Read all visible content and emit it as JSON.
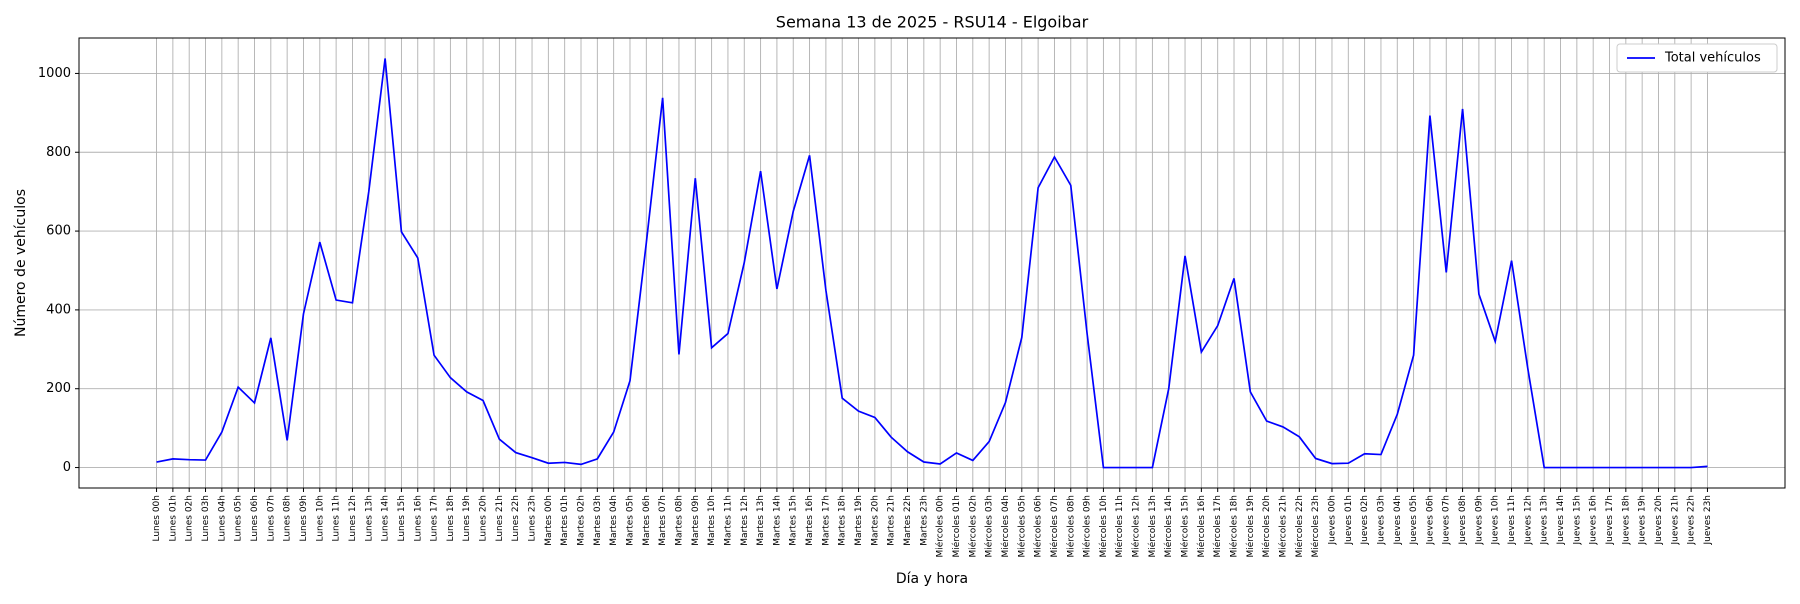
{
  "chart_data": {
    "type": "line",
    "title": "Semana 13 de 2025 - RSU14 - Elgoibar",
    "xlabel": "Día y hora",
    "ylabel": "Número de vehículos",
    "categories": [
      "Lunes 00h",
      "Lunes 01h",
      "Lunes 02h",
      "Lunes 03h",
      "Lunes 04h",
      "Lunes 05h",
      "Lunes 06h",
      "Lunes 07h",
      "Lunes 08h",
      "Lunes 09h",
      "Lunes 10h",
      "Lunes 11h",
      "Lunes 12h",
      "Lunes 13h",
      "Lunes 14h",
      "Lunes 15h",
      "Lunes 16h",
      "Lunes 17h",
      "Lunes 18h",
      "Lunes 19h",
      "Lunes 20h",
      "Lunes 21h",
      "Lunes 22h",
      "Lunes 23h",
      "Martes 00h",
      "Martes 01h",
      "Martes 02h",
      "Martes 03h",
      "Martes 04h",
      "Martes 05h",
      "Martes 06h",
      "Martes 07h",
      "Martes 08h",
      "Martes 09h",
      "Martes 10h",
      "Martes 11h",
      "Martes 12h",
      "Martes 13h",
      "Martes 14h",
      "Martes 15h",
      "Martes 16h",
      "Martes 17h",
      "Martes 18h",
      "Martes 19h",
      "Martes 20h",
      "Martes 21h",
      "Martes 22h",
      "Martes 23h",
      "Miércoles 00h",
      "Miércoles 01h",
      "Miércoles 02h",
      "Miércoles 03h",
      "Miércoles 04h",
      "Miércoles 05h",
      "Miércoles 06h",
      "Miércoles 07h",
      "Miércoles 08h",
      "Miércoles 09h",
      "Miércoles 10h",
      "Miércoles 11h",
      "Miércoles 12h",
      "Miércoles 13h",
      "Miércoles 14h",
      "Miércoles 15h",
      "Miércoles 16h",
      "Miércoles 17h",
      "Miércoles 18h",
      "Miércoles 19h",
      "Miércoles 20h",
      "Miércoles 21h",
      "Miércoles 22h",
      "Miércoles 23h",
      "Jueves 00h",
      "Jueves 01h",
      "Jueves 02h",
      "Jueves 03h",
      "Jueves 04h",
      "Jueves 05h",
      "Jueves 06h",
      "Jueves 07h",
      "Jueves 08h",
      "Jueves 09h",
      "Jueves 10h",
      "Jueves 11h",
      "Jueves 12h",
      "Jueves 13h",
      "Jueves 14h",
      "Jueves 15h",
      "Jueves 16h",
      "Jueves 17h",
      "Jueves 18h",
      "Jueves 19h",
      "Jueves 20h",
      "Jueves 21h",
      "Jueves 22h",
      "Jueves 23h"
    ],
    "series": [
      {
        "name": "Total vehículos",
        "color": "#0000ff",
        "values": [
          14,
          22,
          20,
          19,
          90,
          204,
          164,
          329,
          69,
          390,
          572,
          425,
          418,
          700,
          1038,
          598,
          532,
          285,
          228,
          192,
          170,
          72,
          38,
          25,
          11,
          13,
          8,
          22,
          90,
          220,
          570,
          938,
          287,
          734,
          304,
          340,
          520,
          752,
          453,
          650,
          792,
          450,
          176,
          143,
          127,
          77,
          40,
          14,
          9,
          37,
          18,
          66,
          165,
          330,
          710,
          788,
          716,
          340,
          0,
          0,
          0,
          0,
          200,
          537,
          293,
          360,
          480,
          192,
          118,
          103,
          78,
          23,
          10,
          11,
          35,
          33,
          135,
          285,
          893,
          495,
          910,
          440,
          320,
          525,
          250,
          0,
          0,
          0,
          0,
          0,
          0,
          0,
          0,
          0,
          0,
          3
        ]
      }
    ],
    "xlim": [
      -4.75,
      99.75
    ],
    "ylim": [
      -51.9,
      1089.9
    ],
    "yticks": [
      0,
      200,
      400,
      600,
      800,
      1000
    ],
    "grid": true,
    "legend": "upper right"
  }
}
